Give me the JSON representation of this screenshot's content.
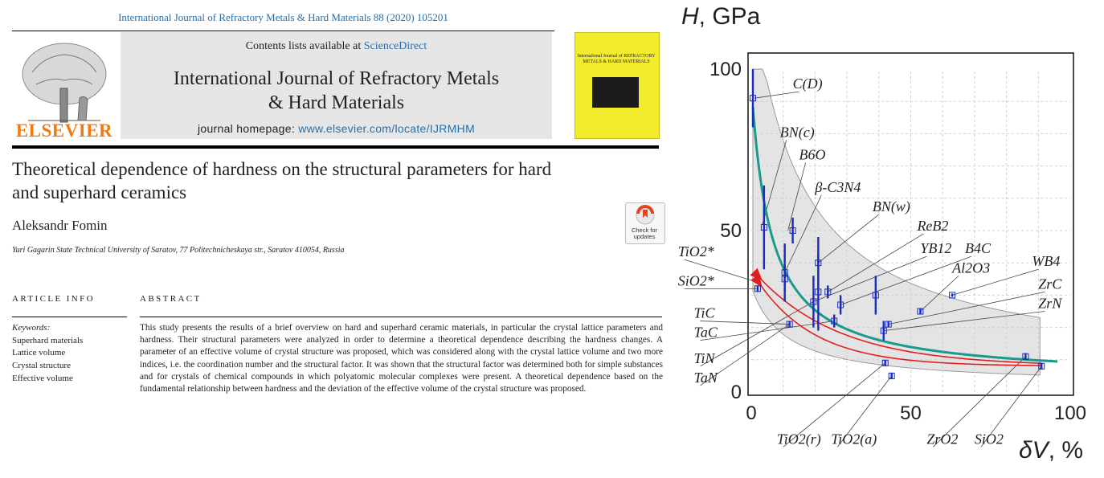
{
  "journal_ref": "International Journal of Refractory Metals & Hard Materials 88 (2020) 105201",
  "masthead": {
    "contents_prefix": "Contents lists available at ",
    "contents_link": "ScienceDirect",
    "journal_title_line1": "International Journal of Refractory Metals",
    "journal_title_line2": "& Hard Materials",
    "homepage_prefix": "journal homepage: ",
    "homepage_link": "www.elsevier.com/locate/IJRMHM",
    "publisher": "ELSEVIER",
    "cover_title": "International Journal of REFRACTORY METALS & HARD MATERIALS"
  },
  "article": {
    "title_line1": "Theoretical dependence of hardness on the structural parameters for hard",
    "title_line2": "and superhard ceramics",
    "author": "Aleksandr Fomin",
    "affiliation": "Yuri Gagarin State Technical University of Saratov, 77 Politechnicheskaya str., Saratov 410054, Russia",
    "check_updates_line1": "Check for",
    "check_updates_line2": "updates"
  },
  "article_info": {
    "heading": "ARTICLE INFO",
    "keywords_label": "Keywords:",
    "keywords": [
      "Superhard materials",
      "Lattice volume",
      "Crystal structure",
      "Effective volume"
    ]
  },
  "abstract": {
    "heading": "ABSTRACT",
    "text": "This study presents the results of a brief overview on hard and superhard ceramic materials, in particular the crystal lattice parameters and hardness. Their structural parameters were analyzed in order to determine a theoretical dependence describing the hardness changes. A parameter of an effective volume of crystal structure was proposed, which was considered along with the crystal lattice volume and two more indices, i.e. the coordination number and the structural factor. It was shown that the structural factor was determined both for simple substances and for crystals of chemical compounds in which polyatomic molecular complexes were present. A theoretical dependence based on the fundamental relationship between hardness and the deviation of the effective volume of the crystal structure was proposed."
  },
  "chart_data": {
    "type": "scatter",
    "ylabel_symbol": "H",
    "ylabel_unit": ", GPa",
    "xlabel_symbol": "δV",
    "xlabel_unit": ", %",
    "xlim": [
      0,
      100
    ],
    "ylim": [
      0,
      100
    ],
    "xticks": [
      "0",
      "50",
      "100"
    ],
    "yticks": [
      "0",
      "50",
      "100"
    ],
    "grid": true,
    "points": [
      {
        "x": 0.5,
        "y": 91,
        "err": 9
      },
      {
        "x": 4,
        "y": 51,
        "err": 13
      },
      {
        "x": 13,
        "y": 50,
        "err": 4
      },
      {
        "x": 21,
        "y": 40,
        "err": 8
      },
      {
        "x": 10.5,
        "y": 37,
        "err": 9
      },
      {
        "x": 10.5,
        "y": 35,
        "err": 4
      },
      {
        "x": 21,
        "y": 31,
        "err": 12
      },
      {
        "x": 24,
        "y": 31,
        "err": 2
      },
      {
        "x": 19.5,
        "y": 28,
        "err": 8
      },
      {
        "x": 28,
        "y": 27,
        "err": 3
      },
      {
        "x": 39,
        "y": 30,
        "err": 6
      },
      {
        "x": 63,
        "y": 30,
        "err": 0.5
      },
      {
        "x": 53,
        "y": 25,
        "err": 1
      },
      {
        "x": 26,
        "y": 22,
        "err": 2
      },
      {
        "x": 43,
        "y": 21,
        "err": 1
      },
      {
        "x": 41.5,
        "y": 19,
        "err": 3
      },
      {
        "x": 12,
        "y": 21,
        "err": 1
      },
      {
        "x": 2,
        "y": 32,
        "err": 1
      },
      {
        "x": 42,
        "y": 9,
        "err": 1
      },
      {
        "x": 44,
        "y": 5,
        "err": 1
      },
      {
        "x": 86,
        "y": 11,
        "err": 1
      },
      {
        "x": 91,
        "y": 8,
        "err": 1
      }
    ],
    "labels": [
      {
        "text": "C(D)",
        "x": 13,
        "y": 94,
        "tx": 1,
        "ty": 91
      },
      {
        "text": "BN(c)",
        "x": 9,
        "y": 79,
        "tx": 3.5,
        "ty": 52
      },
      {
        "text": "B6O",
        "x": 15,
        "y": 72,
        "tx": 11.5,
        "ty": 50
      },
      {
        "text": "β-C3N4",
        "x": 20,
        "y": 62,
        "tx": 10.5,
        "ty": 37
      },
      {
        "text": "BN(w)",
        "x": 38,
        "y": 56,
        "tx": 21,
        "ty": 40
      },
      {
        "text": "ReB2",
        "x": 52,
        "y": 50,
        "tx": 24,
        "ty": 31
      },
      {
        "text": "YB12",
        "x": 53,
        "y": 43,
        "tx": 19.5,
        "ty": 28
      },
      {
        "text": "B4C",
        "x": 67,
        "y": 43,
        "tx": 28,
        "ty": 27
      },
      {
        "text": "Al2O3",
        "x": 63,
        "y": 37,
        "tx": 53,
        "ty": 25
      },
      {
        "text": "WB4",
        "x": 88,
        "y": 39,
        "tx": 63,
        "ty": 30
      },
      {
        "text": "ZrC",
        "x": 90,
        "y": 32,
        "tx": 43,
        "ty": 21
      },
      {
        "text": "ZrN",
        "x": 90,
        "y": 26,
        "tx": 41.5,
        "ty": 19
      },
      {
        "text": "TiO2*",
        "x": -23,
        "y": 42,
        "tx": 2,
        "ty": 34
      },
      {
        "text": "SiO2*",
        "x": -23,
        "y": 33,
        "tx": 2,
        "ty": 32
      },
      {
        "text": "TiC",
        "x": -18,
        "y": 23,
        "tx": 12,
        "ty": 21
      },
      {
        "text": "TaC",
        "x": -18,
        "y": 17,
        "tx": 26,
        "ty": 22
      },
      {
        "text": "TiN",
        "x": -18,
        "y": 9,
        "tx": 19.5,
        "ty": 28
      },
      {
        "text": "TaN",
        "x": -18,
        "y": 3,
        "tx": 12,
        "ty": 21
      },
      {
        "text": "TiO2(r)",
        "x": 8,
        "y": -16,
        "tx": 42,
        "ty": 9
      },
      {
        "text": "TiO2(a)",
        "x": 25,
        "y": -16,
        "tx": 44,
        "ty": 5
      },
      {
        "text": "ZrO2",
        "x": 55,
        "y": -16,
        "tx": 86,
        "ty": 11
      },
      {
        "text": "SiO2",
        "x": 70,
        "y": -16,
        "tx": 91,
        "ty": 8
      }
    ],
    "curves": {
      "fit_color": "#1a9a8c",
      "arrow_color": "#e02020",
      "band_color": "#e4e4e4",
      "point_color": "#1a2bc2"
    }
  }
}
